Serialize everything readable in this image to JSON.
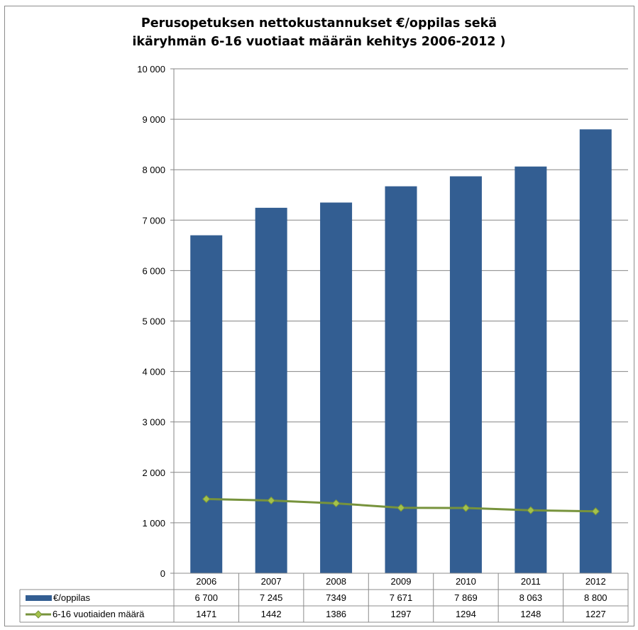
{
  "chart_data": {
    "type": "bar",
    "title_lines": [
      "Perusopetuksen nettokustannukset €/oppilas sekä",
      "ikäryhmän 6-16 vuotiaat määrän kehitys 2006-2012 )"
    ],
    "categories": [
      "2006",
      "2007",
      "2008",
      "2009",
      "2010",
      "2011",
      "2012"
    ],
    "ylim": [
      0,
      10000
    ],
    "y_ticks": [
      0,
      1000,
      2000,
      3000,
      4000,
      5000,
      6000,
      7000,
      8000,
      9000,
      10000
    ],
    "y_tick_labels": [
      "0",
      "1 000",
      "2 000",
      "3 000",
      "4 000",
      "5 000",
      "6 000",
      "7 000",
      "8 000",
      "9 000",
      "10 000"
    ],
    "grid": true,
    "legend": "data-table",
    "series": [
      {
        "name": "€/oppilas",
        "type": "bar",
        "color": "#335e92",
        "values": [
          6700,
          7245,
          7349,
          7671,
          7869,
          8063,
          8800
        ],
        "table_labels": [
          "6 700",
          "7 245",
          "7349",
          "7 671",
          "7 869",
          "8 063",
          "8 800"
        ]
      },
      {
        "name": "6-16 vuotiaiden määrä",
        "type": "line",
        "color": "#77933c",
        "marker_color": "#a4c24b",
        "values": [
          1471,
          1442,
          1386,
          1297,
          1294,
          1248,
          1227
        ],
        "table_labels": [
          "1471",
          "1442",
          "1386",
          "1297",
          "1294",
          "1248",
          "1227"
        ]
      }
    ]
  }
}
